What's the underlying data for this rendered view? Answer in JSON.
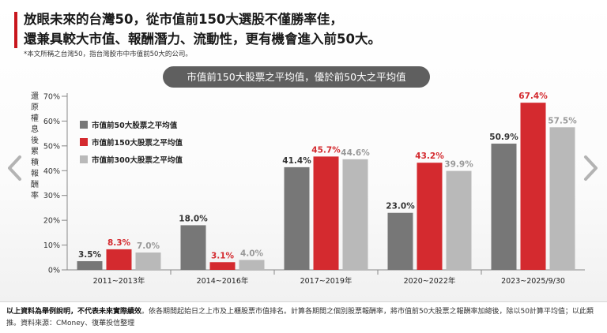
{
  "headline": {
    "line1": "放眼未來的台灣50，從市值前150大選股不僅勝率佳，",
    "line2": "還兼具較大市值、報酬潛力、流動性，更有機會進入前50大。"
  },
  "footnote": "*本文所稱之台灣50，指台灣股市中市值前50大的公司。",
  "banner": "市值前150大股票之平均值，優於前50大之平均值",
  "colors": {
    "accent": "#c8161d",
    "series_dark": "#777777",
    "series_red": "#d42a2f",
    "series_light": "#b9b9b9",
    "label_red": "#d42a2f",
    "label_dark": "#333333",
    "label_light": "#999999"
  },
  "nav": {
    "prev_icon": "chevron-left-icon",
    "next_icon": "chevron-right-icon"
  },
  "chart_data": {
    "type": "bar",
    "title": "市值前150大股票之平均值，優於前50大之平均值",
    "ylabel": "還原權息後累積報酬率",
    "xlabel": "",
    "ylim": [
      0,
      70
    ],
    "yticks": [
      0,
      10,
      20,
      30,
      40,
      50,
      60,
      70
    ],
    "ytick_labels": [
      "0%",
      "10%",
      "20%",
      "30%",
      "40%",
      "50%",
      "60%",
      "70%"
    ],
    "grid": false,
    "legend_position": "top-left",
    "categories": [
      "2011~2013年",
      "2014~2016年",
      "2017~2019年",
      "2020~2022年",
      "2023~2025/9/30"
    ],
    "series": [
      {
        "name": "市值前50大股票之平均值",
        "values": [
          3.5,
          18.0,
          41.4,
          23.0,
          50.9
        ],
        "labels": [
          "3.5%",
          "18.0%",
          "41.4%",
          "23.0%",
          "50.9%"
        ]
      },
      {
        "name": "市值前150大股票之平均值",
        "values": [
          8.3,
          3.1,
          45.7,
          43.2,
          67.4
        ],
        "labels": [
          "8.3%",
          "3.1%",
          "45.7%",
          "43.2%",
          "67.4%"
        ]
      },
      {
        "name": "市值前300大股票之平均值",
        "values": [
          7.0,
          4.0,
          44.6,
          39.9,
          57.5
        ],
        "labels": [
          "7.0%",
          "4.0%",
          "44.6%",
          "39.9%",
          "57.5%"
        ]
      }
    ]
  },
  "disclaimer": {
    "bold": "以上資料為舉例說明，不代表未來實際績效",
    "text": "。依各期間起始日之上市及上櫃股票市值排名。計算各期間之個別股票報酬率，將市值前50大股票之報酬率加總後，除以50計算平均值；以此類推。資料來源：CMoney、復華投信整理"
  }
}
